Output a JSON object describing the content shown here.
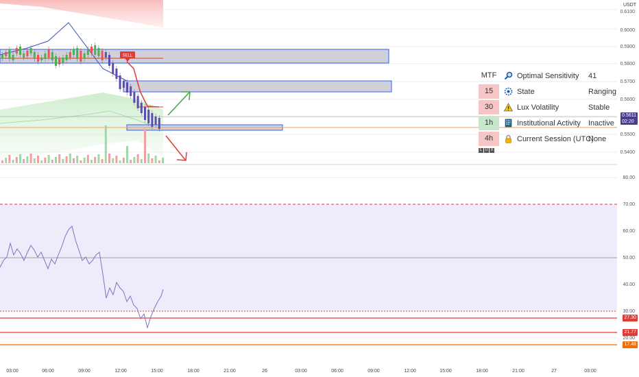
{
  "currency": "USDT",
  "price_axis_main": [
    "0.6100",
    "0.6000",
    "0.5900",
    "0.5800",
    "0.5700",
    "0.5600",
    "0.5500",
    "0.5400"
  ],
  "price_axis_rsi": [
    "80.00",
    "70.00",
    "60.00",
    "50.00",
    "40.00",
    "30.00",
    "20.00"
  ],
  "price_tags": [
    {
      "value": "0.5611",
      "sub": "02:20",
      "color": "#4a3d8f"
    },
    {
      "value": "27.30",
      "color": "#e53935"
    },
    {
      "value": "21.77",
      "color": "#e53935"
    },
    {
      "value": "17.48",
      "color": "#ef6c00"
    }
  ],
  "time_axis": [
    "03:00",
    "06:00",
    "09:00",
    "12:00",
    "15:00",
    "18:00",
    "21:00",
    "26",
    "03:00",
    "06:00",
    "09:00",
    "12:00",
    "15:00",
    "18:00",
    "21:00",
    "27",
    "03:00"
  ],
  "sell_label": "SELL",
  "info_panel": {
    "header": "MTF",
    "rows": [
      {
        "tf": "",
        "icon": "magnifier-icon",
        "label": "Optimal  Sensitivity",
        "value": "41"
      },
      {
        "tf": "15",
        "tf_color": "#f6c6c6",
        "icon": "gear-icon",
        "label": "State",
        "value": "Ranging"
      },
      {
        "tf": "30",
        "tf_color": "#f6c6c6",
        "icon": "warning-icon",
        "label": "Lux Volatility",
        "value": "Stable"
      },
      {
        "tf": "1h",
        "tf_color": "#c8e6c9",
        "icon": "building-icon",
        "label": "Institutional Activity",
        "value": "Inactive"
      },
      {
        "tf": "4h",
        "tf_color": "#f6c6c6",
        "icon": "lock-icon",
        "label": "Current Session (UTC)",
        "value": "None"
      }
    ],
    "logo_letters": [
      "L",
      "U",
      "X"
    ]
  }
}
